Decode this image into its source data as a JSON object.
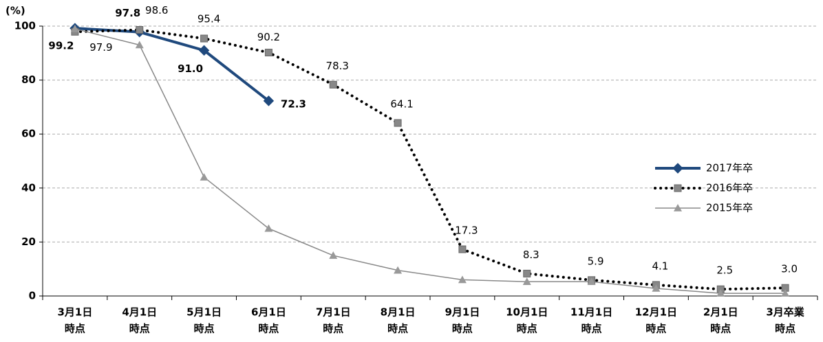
{
  "chart_data": {
    "type": "line",
    "y_label": "(%)",
    "categories": [
      [
        "3月1日",
        "時点"
      ],
      [
        "4月1日",
        "時点"
      ],
      [
        "5月1日",
        "時点"
      ],
      [
        "6月1日",
        "時点"
      ],
      [
        "7月1日",
        "時点"
      ],
      [
        "8月1日",
        "時点"
      ],
      [
        "9月1日",
        "時点"
      ],
      [
        "10月1日",
        "時点"
      ],
      [
        "11月1日",
        "時点"
      ],
      [
        "12月1日",
        "時点"
      ],
      [
        "2月1日",
        "時点"
      ],
      [
        "3月卒業",
        "時点"
      ]
    ],
    "series": [
      {
        "name": "2017年卒",
        "color": "#1f497d",
        "values": [
          99.2,
          97.8,
          91.0,
          72.3,
          null,
          null,
          null,
          null,
          null,
          null,
          null,
          null
        ],
        "value_labels": [
          "99.2",
          "97.8",
          "91.0",
          "72.3",
          null,
          null,
          null,
          null,
          null,
          null,
          null,
          null
        ]
      },
      {
        "name": "2016年卒",
        "color": "#000000",
        "values": [
          97.9,
          98.6,
          95.4,
          90.2,
          78.3,
          64.1,
          17.3,
          8.3,
          5.9,
          4.1,
          2.5,
          3.0
        ],
        "value_labels": [
          "97.9",
          "98.6",
          "95.4",
          "90.2",
          "78.3",
          "64.1",
          "17.3",
          "8.3",
          "5.9",
          "4.1",
          "2.5",
          "3.0"
        ]
      },
      {
        "name": "2015年卒",
        "color": "#888888",
        "values": [
          99.0,
          93.0,
          44.0,
          25.0,
          15.0,
          9.5,
          6.0,
          5.3,
          5.3,
          2.8,
          1.0,
          1.0
        ]
      }
    ],
    "ylim": [
      0,
      100
    ],
    "yticks": [
      0,
      20,
      40,
      60,
      80,
      100
    ],
    "grid": true
  }
}
